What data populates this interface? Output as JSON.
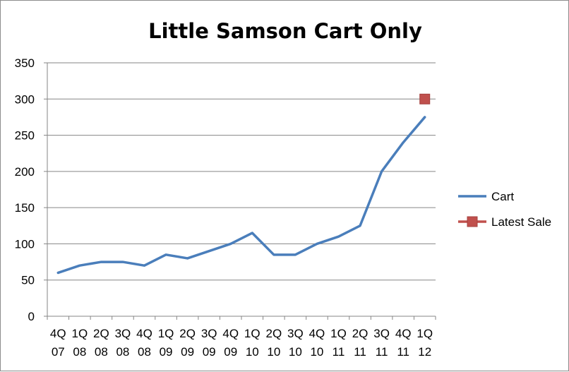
{
  "chart_data": {
    "type": "line",
    "title": "Little Samson Cart Only",
    "xlabel": "",
    "ylabel": "",
    "ylim": [
      0,
      350
    ],
    "yticks": [
      0,
      50,
      100,
      150,
      200,
      250,
      300,
      350
    ],
    "grid": true,
    "legend_position": "right",
    "categories": [
      {
        "q": "4Q",
        "y": "07"
      },
      {
        "q": "1Q",
        "y": "08"
      },
      {
        "q": "2Q",
        "y": "08"
      },
      {
        "q": "3Q",
        "y": "08"
      },
      {
        "q": "4Q",
        "y": "08"
      },
      {
        "q": "1Q",
        "y": "09"
      },
      {
        "q": "2Q",
        "y": "09"
      },
      {
        "q": "3Q",
        "y": "09"
      },
      {
        "q": "4Q",
        "y": "09"
      },
      {
        "q": "1Q",
        "y": "10"
      },
      {
        "q": "2Q",
        "y": "10"
      },
      {
        "q": "3Q",
        "y": "10"
      },
      {
        "q": "4Q",
        "y": "10"
      },
      {
        "q": "1Q",
        "y": "11"
      },
      {
        "q": "2Q",
        "y": "11"
      },
      {
        "q": "3Q",
        "y": "11"
      },
      {
        "q": "4Q",
        "y": "11"
      },
      {
        "q": "1Q",
        "y": "12"
      }
    ],
    "series": [
      {
        "name": "Cart",
        "color": "#4a7ebb",
        "marker": "none",
        "values": [
          60,
          70,
          75,
          75,
          70,
          85,
          80,
          90,
          100,
          115,
          85,
          85,
          100,
          110,
          125,
          200,
          240,
          275
        ]
      },
      {
        "name": "Latest Sale",
        "color": "#c0504d",
        "marker": "square",
        "values": [
          null,
          null,
          null,
          null,
          null,
          null,
          null,
          null,
          null,
          null,
          null,
          null,
          null,
          null,
          null,
          null,
          null,
          300
        ]
      }
    ]
  }
}
